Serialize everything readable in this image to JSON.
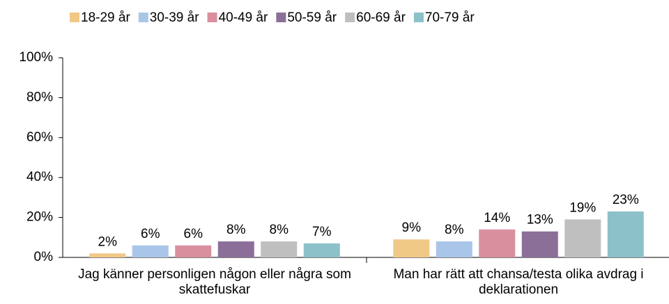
{
  "chart_data": {
    "type": "bar",
    "categories": [
      "Jag känner personligen någon eller några som skattefuskar",
      "Man har rätt att chansa/testa olika avdrag i deklarationen"
    ],
    "series": [
      {
        "name": "18-29 år",
        "color": "#f0c987",
        "values": [
          2,
          9
        ],
        "value_labels": [
          "2%",
          "9%"
        ]
      },
      {
        "name": "30-39 år",
        "color": "#a9c6e8",
        "values": [
          6,
          8
        ],
        "value_labels": [
          "6%",
          "8%"
        ]
      },
      {
        "name": "40-49 år",
        "color": "#d98f9e",
        "values": [
          6,
          14
        ],
        "value_labels": [
          "6%",
          "14%"
        ]
      },
      {
        "name": "50-59 år",
        "color": "#8b6f98",
        "values": [
          8,
          13
        ],
        "value_labels": [
          "8%",
          "13%"
        ]
      },
      {
        "name": "60-69 år",
        "color": "#bfbfbf",
        "values": [
          8,
          19
        ],
        "value_labels": [
          "8%",
          "19%"
        ]
      },
      {
        "name": "70-79 år",
        "color": "#8cc1c9",
        "values": [
          7,
          23
        ],
        "value_labels": [
          "7%",
          "23%"
        ]
      }
    ],
    "ylim": [
      0,
      100
    ],
    "yticks": [
      {
        "value": 0,
        "label": "0%"
      },
      {
        "value": 20,
        "label": "20%"
      },
      {
        "value": 40,
        "label": "40%"
      },
      {
        "value": 60,
        "label": "60%"
      },
      {
        "value": 80,
        "label": "80%"
      },
      {
        "value": 100,
        "label": "100%"
      }
    ],
    "grid": false,
    "legend": "top"
  }
}
